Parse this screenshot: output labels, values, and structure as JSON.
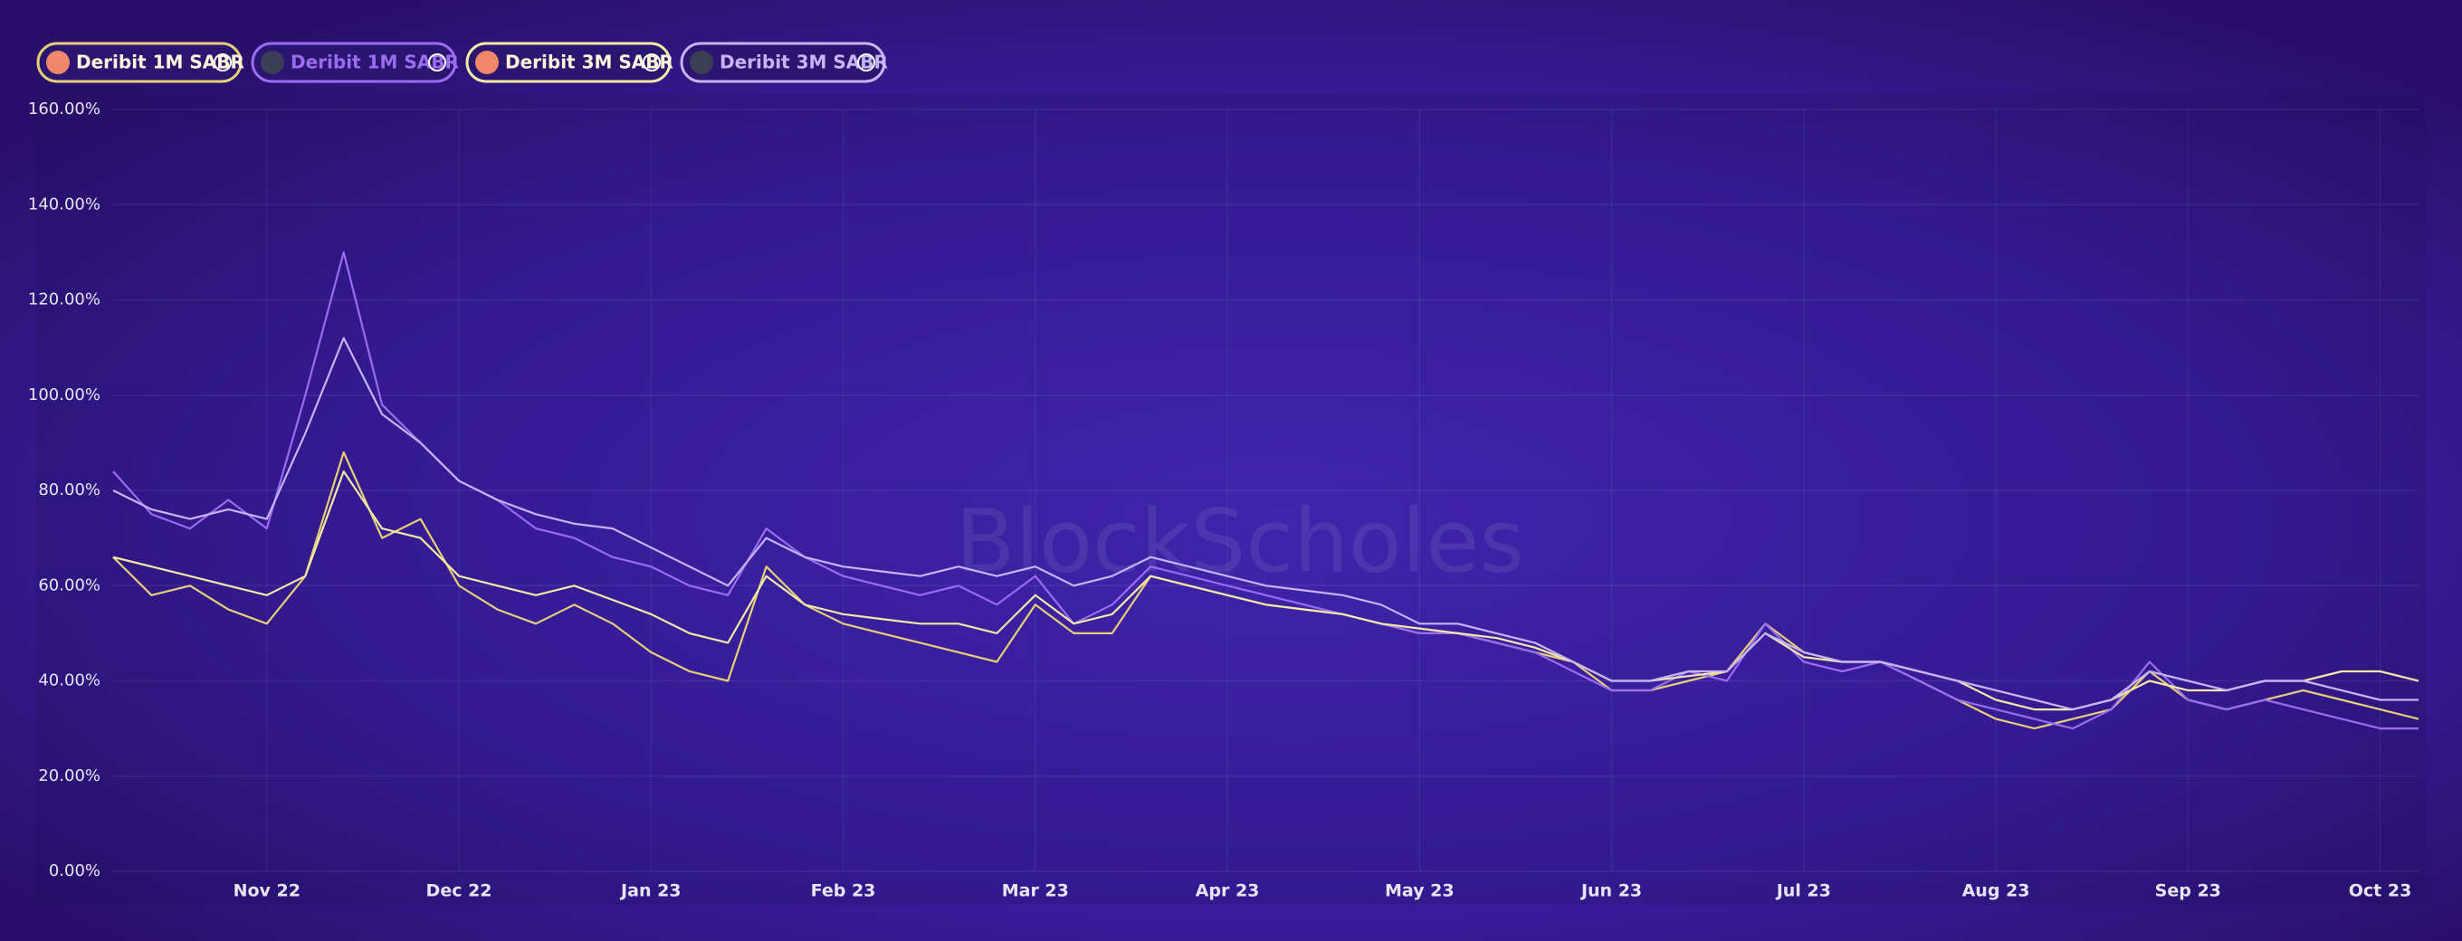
{
  "chart_data": {
    "type": "line",
    "watermark": "BlockScholes",
    "categories": [
      null,
      null,
      null,
      null,
      "Nov 22",
      null,
      null,
      null,
      null,
      "Dec 22",
      null,
      null,
      null,
      null,
      "Jan 23",
      null,
      null,
      null,
      null,
      "Feb 23",
      null,
      null,
      null,
      null,
      "Mar 23",
      null,
      null,
      null,
      null,
      "Apr 23",
      null,
      null,
      null,
      null,
      "May 23",
      null,
      null,
      null,
      null,
      "Jun 23",
      null,
      null,
      null,
      null,
      "Jul 23",
      null,
      null,
      null,
      null,
      "Aug 23",
      null,
      null,
      null,
      null,
      "Sep 23",
      null,
      null,
      null,
      null,
      "Oct 23",
      null
    ],
    "ylim": [
      0,
      160
    ],
    "yticks": [
      {
        "value": 0,
        "label": "0.00%"
      },
      {
        "value": 20,
        "label": "20.00%"
      },
      {
        "value": 40,
        "label": "40.00%"
      },
      {
        "value": 60,
        "label": "60.00%"
      },
      {
        "value": 80,
        "label": "80.00%"
      },
      {
        "value": 100,
        "label": "100.00%"
      },
      {
        "value": 120,
        "label": "120.00%"
      },
      {
        "value": 140,
        "label": "140.00%"
      },
      {
        "value": 160,
        "label": "160.00%"
      }
    ],
    "grid": true,
    "series": [
      {
        "name": "Deribit 1M SABR",
        "asset": "BTC",
        "color": "#e6cf78",
        "values": [
          66,
          58,
          60,
          55,
          52,
          62,
          88,
          70,
          74,
          60,
          55,
          52,
          56,
          52,
          46,
          42,
          40,
          64,
          56,
          52,
          50,
          48,
          46,
          44,
          56,
          50,
          50,
          62,
          60,
          58,
          56,
          55,
          54,
          52,
          50,
          50,
          48,
          46,
          44,
          38,
          38,
          40,
          42,
          52,
          46,
          44,
          44,
          40,
          36,
          32,
          30,
          32,
          34,
          42,
          36,
          34,
          36,
          38,
          36,
          34,
          32
        ]
      },
      {
        "name": "Deribit 1M SABR",
        "asset": "ETH",
        "color": "#9a6cf0",
        "values": [
          84,
          75,
          72,
          78,
          72,
          100,
          130,
          98,
          90,
          82,
          78,
          72,
          70,
          66,
          64,
          60,
          58,
          72,
          66,
          62,
          60,
          58,
          60,
          56,
          62,
          52,
          56,
          64,
          62,
          60,
          58,
          56,
          54,
          52,
          50,
          50,
          48,
          46,
          42,
          38,
          38,
          42,
          40,
          52,
          44,
          42,
          44,
          40,
          36,
          34,
          32,
          30,
          34,
          44,
          36,
          34,
          36,
          34,
          32,
          30,
          30
        ]
      },
      {
        "name": "Deribit 3M SABR",
        "asset": "BTC",
        "color": "#f2e9a6",
        "values": [
          66,
          64,
          62,
          60,
          58,
          62,
          84,
          72,
          70,
          62,
          60,
          58,
          60,
          57,
          54,
          50,
          48,
          62,
          56,
          54,
          53,
          52,
          52,
          50,
          58,
          52,
          54,
          62,
          60,
          58,
          56,
          55,
          54,
          52,
          51,
          50,
          49,
          47,
          44,
          40,
          40,
          41,
          42,
          50,
          45,
          44,
          44,
          42,
          40,
          36,
          34,
          34,
          36,
          40,
          38,
          38,
          40,
          40,
          42,
          42,
          40
        ]
      },
      {
        "name": "Deribit 3M SABR",
        "asset": "ETH",
        "color": "#c6b4f5",
        "values": [
          80,
          76,
          74,
          76,
          74,
          92,
          112,
          96,
          90,
          82,
          78,
          75,
          73,
          72,
          68,
          64,
          60,
          70,
          66,
          64,
          63,
          62,
          64,
          62,
          64,
          60,
          62,
          66,
          64,
          62,
          60,
          59,
          58,
          56,
          52,
          52,
          50,
          48,
          44,
          40,
          40,
          42,
          42,
          50,
          46,
          44,
          44,
          42,
          40,
          38,
          36,
          34,
          36,
          42,
          40,
          38,
          40,
          40,
          38,
          36,
          36
        ]
      }
    ]
  }
}
